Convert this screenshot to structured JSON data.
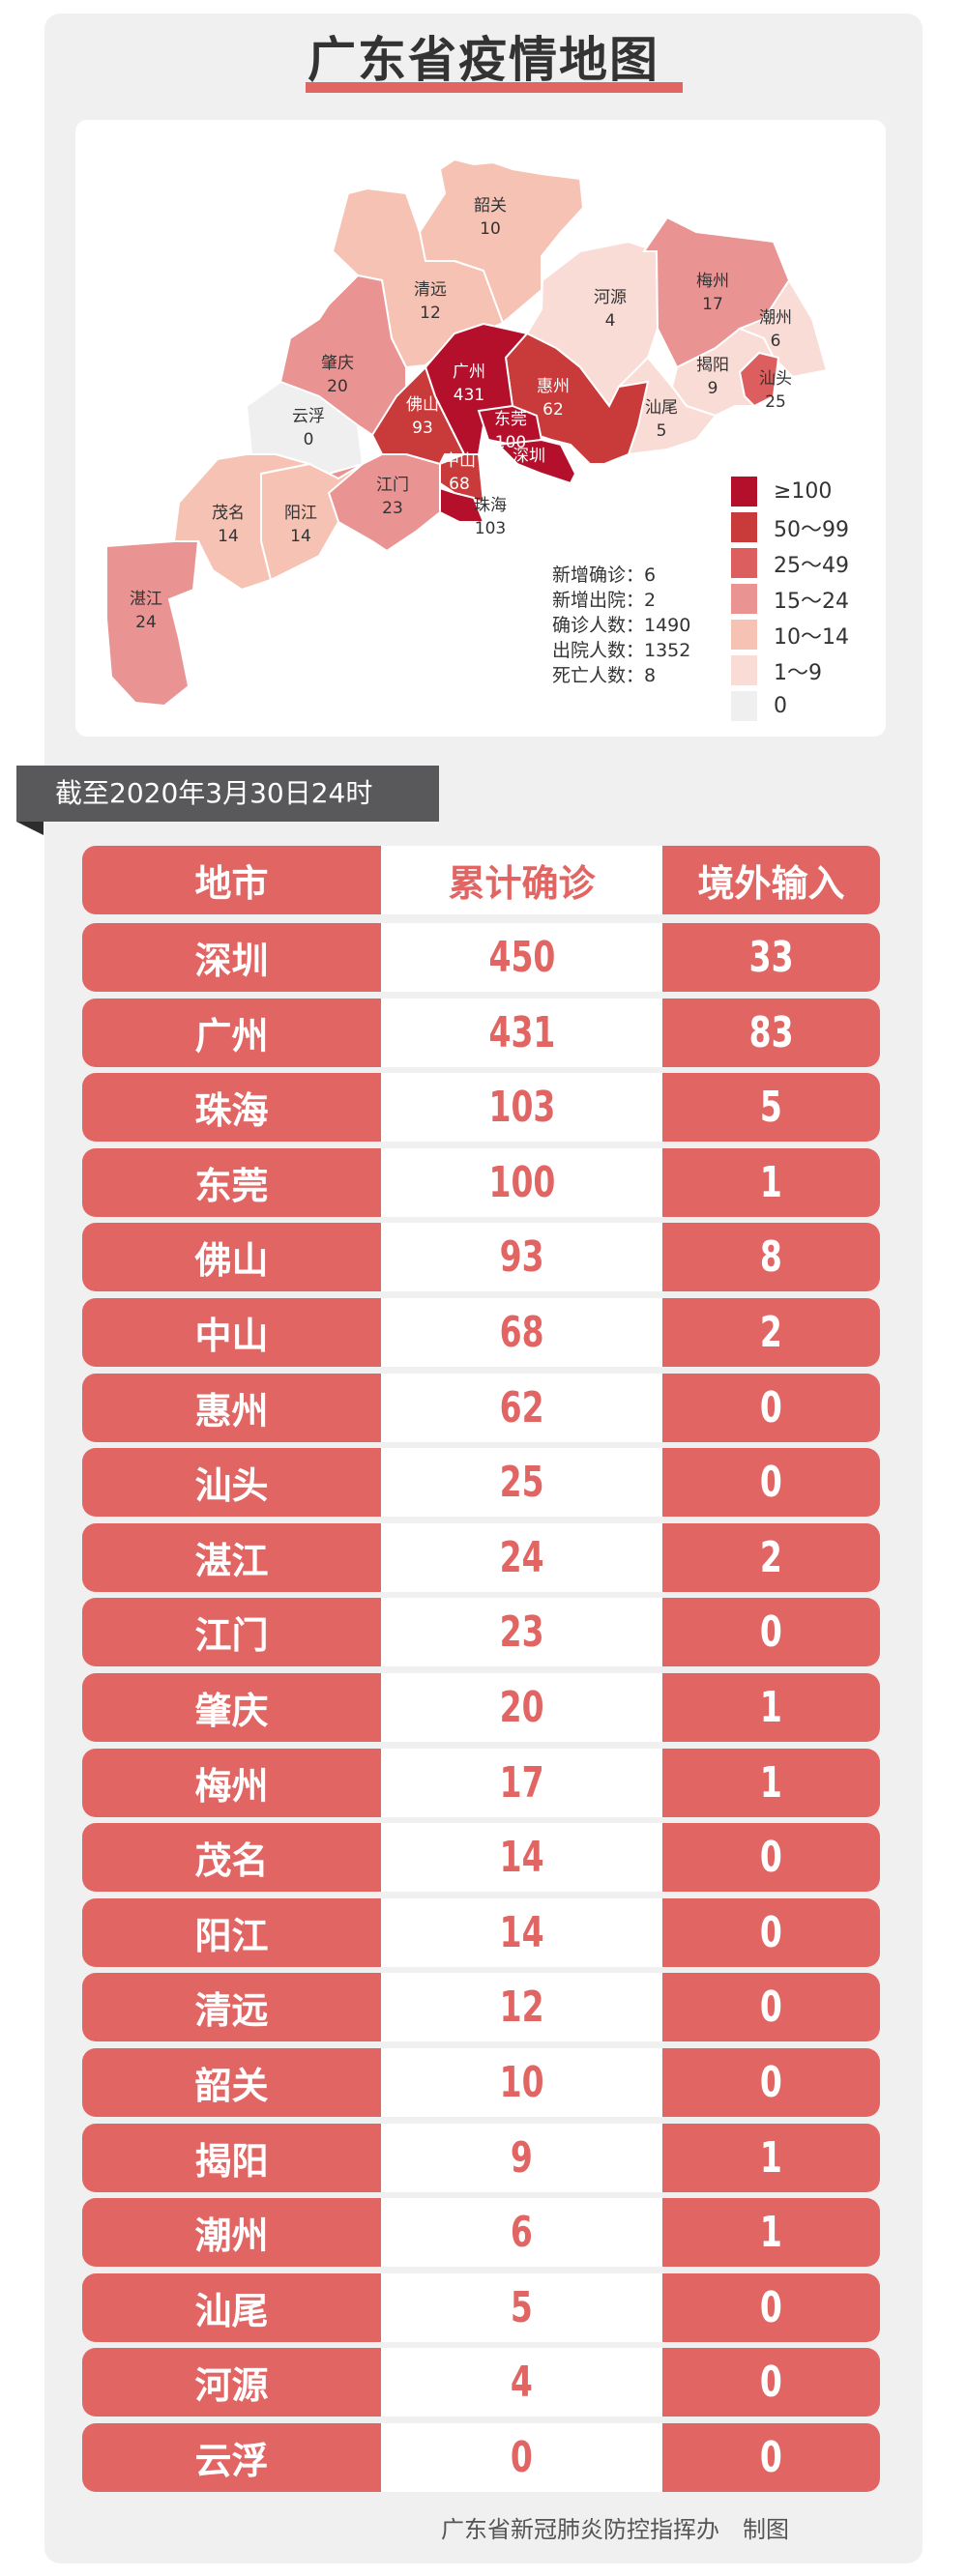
{
  "title": "广东省疫情地图",
  "map": {
    "regions": [
      {
        "name": "韶关",
        "value": 10,
        "color": "#f6c2b4"
      },
      {
        "name": "清远",
        "value": 12,
        "color": "#f6c2b4"
      },
      {
        "name": "肇庆",
        "value": 20,
        "color": "#e99393"
      },
      {
        "name": "云浮",
        "value": 0,
        "color": "#f0eff0"
      },
      {
        "name": "河源",
        "value": 4,
        "color": "#fadcd6"
      },
      {
        "name": "梅州",
        "value": 17,
        "color": "#e99393"
      },
      {
        "name": "潮州",
        "value": 6,
        "color": "#fadcd6"
      },
      {
        "name": "揭阳",
        "value": 9,
        "color": "#fadcd6"
      },
      {
        "name": "汕头",
        "value": 25,
        "color": "#dd5e5e"
      },
      {
        "name": "汕尾",
        "value": 5,
        "color": "#fadcd6"
      },
      {
        "name": "惠州",
        "value": 62,
        "color": "#c93a3a"
      },
      {
        "name": "广州",
        "value": 431,
        "color": "#b5102b"
      },
      {
        "name": "东莞",
        "value": 100,
        "color": "#b5102b"
      },
      {
        "name": "深圳",
        "value": 450,
        "color": "#b5102b"
      },
      {
        "name": "佛山",
        "value": 93,
        "color": "#c93a3a"
      },
      {
        "name": "中山",
        "value": 68,
        "color": "#c93a3a"
      },
      {
        "name": "珠海",
        "value": 103,
        "color": "#b5102b"
      },
      {
        "name": "江门",
        "value": 23,
        "color": "#e99393"
      },
      {
        "name": "阳江",
        "value": 14,
        "color": "#f6c2b4"
      },
      {
        "name": "茂名",
        "value": 14,
        "color": "#f6c2b4"
      },
      {
        "name": "湛江",
        "value": 24,
        "color": "#e99393"
      }
    ],
    "stats": [
      {
        "label": "新增确诊",
        "value": "6"
      },
      {
        "label": "新增出院",
        "value": "2"
      },
      {
        "label": "确诊人数",
        "value": "1490"
      },
      {
        "label": "出院人数",
        "value": "1352"
      },
      {
        "label": "死亡人数",
        "value": "8"
      }
    ],
    "legend": [
      {
        "label": "≥100",
        "color": "#b5102b"
      },
      {
        "label": "50～99",
        "color": "#c93a3a"
      },
      {
        "label": "25～49",
        "color": "#dd5e5e"
      },
      {
        "label": "15～24",
        "color": "#e99393"
      },
      {
        "label": "10～14",
        "color": "#f6c2b4"
      },
      {
        "label": "1～9",
        "color": "#fadcd6"
      },
      {
        "label": "0",
        "color": "#f0eff0"
      }
    ]
  },
  "date_banner": "截至2020年3月30日24时",
  "table": {
    "headers": [
      "地市",
      "累计确诊",
      "境外输入"
    ],
    "rows": [
      [
        "深圳",
        "450",
        "33"
      ],
      [
        "广州",
        "431",
        "83"
      ],
      [
        "珠海",
        "103",
        "5"
      ],
      [
        "东莞",
        "100",
        "1"
      ],
      [
        "佛山",
        "93",
        "8"
      ],
      [
        "中山",
        "68",
        "2"
      ],
      [
        "惠州",
        "62",
        "0"
      ],
      [
        "汕头",
        "25",
        "0"
      ],
      [
        "湛江",
        "24",
        "2"
      ],
      [
        "江门",
        "23",
        "0"
      ],
      [
        "肇庆",
        "20",
        "1"
      ],
      [
        "梅州",
        "17",
        "1"
      ],
      [
        "茂名",
        "14",
        "0"
      ],
      [
        "阳江",
        "14",
        "0"
      ],
      [
        "清远",
        "12",
        "0"
      ],
      [
        "韶关",
        "10",
        "0"
      ],
      [
        "揭阳",
        "9",
        "1"
      ],
      [
        "潮州",
        "6",
        "1"
      ],
      [
        "汕尾",
        "5",
        "0"
      ],
      [
        "河源",
        "4",
        "0"
      ],
      [
        "云浮",
        "0",
        "0"
      ]
    ]
  },
  "footer": "广东省新冠肺炎防控指挥办　制图",
  "colors": {
    "accent": "#e06563",
    "banner": "#59595b",
    "panel": "#f1f0f1"
  }
}
